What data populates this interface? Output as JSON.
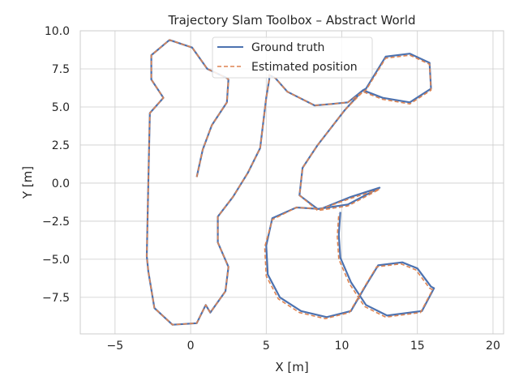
{
  "chart_data": {
    "type": "line",
    "title": "Trajectory Slam Toolbox – Abstract World",
    "xlabel": "X [m]",
    "ylabel": "Y [m]",
    "xlim": [
      -7.3,
      20.7
    ],
    "ylim": [
      -9.9,
      10.0
    ],
    "xticks": [
      -5,
      0,
      5,
      10,
      15,
      20
    ],
    "yticks": [
      -7.5,
      -5.0,
      -2.5,
      0.0,
      2.5,
      5.0,
      7.5,
      10.0
    ],
    "xtick_labels": [
      "−5",
      "0",
      "5",
      "10",
      "15",
      "20"
    ],
    "ytick_labels": [
      "−7.5",
      "−5.0",
      "−2.5",
      "0.0",
      "2.5",
      "5.0",
      "7.5",
      "10.0"
    ],
    "grid": true,
    "legend_position": "top-center",
    "colors": {
      "ground_truth": "#4c72b0",
      "estimated": "#dd8452"
    },
    "series": [
      {
        "name": "Ground truth",
        "style": "solid",
        "x": [
          0.4,
          0.8,
          1.4,
          2.4,
          2.5,
          2.4,
          1.1,
          0.1,
          -1.4,
          -2.6,
          -2.6,
          -1.8,
          -2.7,
          -2.8,
          -2.9,
          -2.8,
          -2.4,
          -1.2,
          0.4,
          1.0,
          1.3,
          2.3,
          2.5,
          1.8,
          1.8,
          2.8,
          3.8,
          4.6,
          5.0,
          5.2,
          5.2,
          5.6,
          6.4,
          8.2,
          9.4,
          10.4,
          11.4,
          11.6,
          12.9,
          14.5,
          15.8,
          15.9,
          14.5,
          12.7,
          11.4,
          10.2,
          8.4,
          7.4,
          7.2,
          8.4,
          10.4,
          12.5,
          10.6,
          8.6,
          7.0,
          5.4,
          5.0,
          5.1,
          5.9,
          7.3,
          9.0,
          10.6,
          11.6,
          12.4,
          14.0,
          15.0,
          15.9,
          16.1,
          15.3,
          14.5,
          13.0,
          11.6,
          10.6,
          9.9,
          9.8,
          9.9
        ],
        "y": [
          0.4,
          2.2,
          3.8,
          5.3,
          6.8,
          6.9,
          7.5,
          8.9,
          9.4,
          8.4,
          6.8,
          5.6,
          4.6,
          0.0,
          -4.8,
          -5.8,
          -8.2,
          -9.3,
          -9.2,
          -8.0,
          -8.5,
          -7.1,
          -5.5,
          -3.9,
          -2.2,
          -0.9,
          0.7,
          2.3,
          5.6,
          6.8,
          7.1,
          6.9,
          6.0,
          5.1,
          5.2,
          5.3,
          6.1,
          6.2,
          8.3,
          8.5,
          7.9,
          6.2,
          5.3,
          5.6,
          6.1,
          4.8,
          2.5,
          1.0,
          -0.8,
          -1.7,
          -1.4,
          -0.3,
          -0.9,
          -1.7,
          -1.6,
          -2.3,
          -4.1,
          -6.0,
          -7.5,
          -8.4,
          -8.8,
          -8.4,
          -6.7,
          -5.4,
          -5.2,
          -5.6,
          -6.8,
          -6.9,
          -8.4,
          -8.5,
          -8.7,
          -8.0,
          -6.5,
          -4.9,
          -3.4,
          -1.9
        ]
      },
      {
        "name": "Estimated position",
        "style": "dashed",
        "x": [
          0.4,
          0.8,
          1.4,
          2.4,
          2.5,
          2.4,
          1.1,
          0.1,
          -1.4,
          -2.6,
          -2.6,
          -1.8,
          -2.7,
          -2.8,
          -2.9,
          -2.8,
          -2.4,
          -1.2,
          0.4,
          1.0,
          1.3,
          2.3,
          2.5,
          1.8,
          1.8,
          2.8,
          3.8,
          4.6,
          5.0,
          5.2,
          5.2,
          5.6,
          6.4,
          8.2,
          9.4,
          10.4,
          11.4,
          11.6,
          12.9,
          14.5,
          15.8,
          15.9,
          14.5,
          12.7,
          11.4,
          10.2,
          8.4,
          7.4,
          7.2,
          8.4,
          10.4,
          12.5,
          10.6,
          8.6,
          7.0,
          5.4,
          4.9,
          5.0,
          5.8,
          7.2,
          8.9,
          10.5,
          11.5,
          12.3,
          13.9,
          14.9,
          15.8,
          16.0,
          15.2,
          14.4,
          12.9,
          11.5,
          10.5,
          9.8,
          9.7,
          9.8
        ],
        "y": [
          0.4,
          2.2,
          3.8,
          5.3,
          6.8,
          6.9,
          7.5,
          8.9,
          9.4,
          8.4,
          6.8,
          5.6,
          4.6,
          0.0,
          -4.8,
          -5.8,
          -8.2,
          -9.3,
          -9.2,
          -8.0,
          -8.5,
          -7.1,
          -5.5,
          -3.9,
          -2.2,
          -0.9,
          0.7,
          2.3,
          5.6,
          6.8,
          7.1,
          6.9,
          6.0,
          5.1,
          5.2,
          5.3,
          6.0,
          6.1,
          8.2,
          8.4,
          7.8,
          6.1,
          5.2,
          5.5,
          6.0,
          4.8,
          2.5,
          1.0,
          -0.8,
          -1.8,
          -1.5,
          -0.4,
          -1.0,
          -1.7,
          -1.6,
          -2.4,
          -4.2,
          -6.1,
          -7.6,
          -8.5,
          -8.9,
          -8.5,
          -6.8,
          -5.5,
          -5.3,
          -5.7,
          -6.9,
          -7.0,
          -8.5,
          -8.6,
          -8.8,
          -8.1,
          -6.6,
          -5.0,
          -3.5,
          -2.0
        ]
      }
    ]
  }
}
